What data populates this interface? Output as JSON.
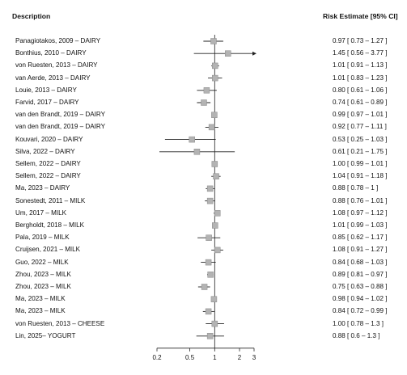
{
  "header": {
    "description_label": "Description",
    "risk_label": "Risk Estimate  [95% CI]"
  },
  "chart_data": {
    "type": "forest",
    "x_scale": "log",
    "x_ticks": [
      {
        "value": 0.2,
        "label": "0.2"
      },
      {
        "value": 0.5,
        "label": "0.5"
      },
      {
        "value": 1,
        "label": "1"
      },
      {
        "value": 2,
        "label": "2"
      },
      {
        "value": 3,
        "label": "3"
      }
    ],
    "reference_line": 1,
    "rows": [
      {
        "label": "Panagiotakos, 2009 – DAIRY",
        "estimate": 0.97,
        "lower": 0.73,
        "upper": 1.27,
        "text": "0.97  [ 0.73 – 1.27 ]"
      },
      {
        "label": "Bonthius, 2010 – DAIRY",
        "estimate": 1.45,
        "lower": 0.56,
        "upper": 3.77,
        "text": "1.45  [ 0.56 – 3.77 ]"
      },
      {
        "label": "von Ruesten, 2013 – DAIRY",
        "estimate": 1.01,
        "lower": 0.91,
        "upper": 1.13,
        "text": "1.01  [ 0.91 – 1.13 ]"
      },
      {
        "label": "van Aerde, 2013 – DAIRY",
        "estimate": 1.01,
        "lower": 0.83,
        "upper": 1.23,
        "text": "1.01  [ 0.83 – 1.23 ]"
      },
      {
        "label": "Louie, 2013 – DAIRY",
        "estimate": 0.8,
        "lower": 0.61,
        "upper": 1.06,
        "text": "0.80  [ 0.61 – 1.06 ]"
      },
      {
        "label": "Farvid, 2017 – DAIRY",
        "estimate": 0.74,
        "lower": 0.61,
        "upper": 0.89,
        "text": "0.74  [ 0.61 – 0.89 ]"
      },
      {
        "label": "van den Brandt, 2019 – DAIRY",
        "estimate": 0.99,
        "lower": 0.97,
        "upper": 1.01,
        "text": "0.99  [ 0.97 – 1.01 ]"
      },
      {
        "label": "van den Brandt, 2019 – DAIRY",
        "estimate": 0.92,
        "lower": 0.77,
        "upper": 1.11,
        "text": "0.92  [ 0.77 – 1.11 ]"
      },
      {
        "label": "Kouvari, 2020 – DAIRY",
        "estimate": 0.53,
        "lower": 0.25,
        "upper": 1.03,
        "text": "0.53  [ 0.25 – 1.03 ]"
      },
      {
        "label": "Silva, 2022 – DAIRY",
        "estimate": 0.61,
        "lower": 0.21,
        "upper": 1.75,
        "text": "0.61  [ 0.21 – 1.75 ]"
      },
      {
        "label": "Sellem, 2022 – DAIRY",
        "estimate": 1.0,
        "lower": 0.99,
        "upper": 1.01,
        "text": "1.00  [ 0.99 – 1.01 ]"
      },
      {
        "label": "Sellem, 2022 – DAIRY",
        "estimate": 1.04,
        "lower": 0.91,
        "upper": 1.18,
        "text": "1.04  [ 0.91 – 1.18 ]"
      },
      {
        "label": "Ma, 2023 – DAIRY",
        "estimate": 0.88,
        "lower": 0.78,
        "upper": 1.0,
        "text": "0.88  [ 0.78 – 1 ]"
      },
      {
        "label": "Sonestedt, 2011 – MILK",
        "estimate": 0.88,
        "lower": 0.76,
        "upper": 1.01,
        "text": "0.88  [ 0.76 – 1.01 ]"
      },
      {
        "label": "Um, 2017 – MILK",
        "estimate": 1.08,
        "lower": 0.97,
        "upper": 1.12,
        "text": "1.08  [ 0.97 – 1.12 ]"
      },
      {
        "label": "Bergholdt, 2018 – MILK",
        "estimate": 1.01,
        "lower": 0.99,
        "upper": 1.03,
        "text": "1.01  [ 0.99 – 1.03 ]"
      },
      {
        "label": "Pala, 2019 – MILK",
        "estimate": 0.85,
        "lower": 0.62,
        "upper": 1.17,
        "text": "0.85  [ 0.62 – 1.17 ]"
      },
      {
        "label": "Cruijsen, 2021 – MILK",
        "estimate": 1.08,
        "lower": 0.91,
        "upper": 1.27,
        "text": "1.08  [ 0.91 – 1.27 ]"
      },
      {
        "label": "Guo, 2022 – MILK",
        "estimate": 0.84,
        "lower": 0.68,
        "upper": 1.03,
        "text": "0.84  [ 0.68 – 1.03 ]"
      },
      {
        "label": "Zhou, 2023 – MILK",
        "estimate": 0.89,
        "lower": 0.81,
        "upper": 0.97,
        "text": "0.89  [ 0.81 – 0.97 ]"
      },
      {
        "label": "Zhou, 2023 – MILK",
        "estimate": 0.75,
        "lower": 0.63,
        "upper": 0.88,
        "text": "0.75  [ 0.63 – 0.88 ]"
      },
      {
        "label": "Ma, 2023 – MILK",
        "estimate": 0.98,
        "lower": 0.94,
        "upper": 1.02,
        "text": "0.98  [ 0.94 – 1.02 ]"
      },
      {
        "label": "Ma, 2023 – MILK",
        "estimate": 0.84,
        "lower": 0.72,
        "upper": 0.99,
        "text": "0.84  [ 0.72 – 0.99 ]"
      },
      {
        "label": "von Ruesten, 2013 – CHEESE",
        "estimate": 1.0,
        "lower": 0.78,
        "upper": 1.3,
        "text": "1.00  [ 0.78 – 1.3 ]"
      },
      {
        "label": "Lin, 2025– YOGURT",
        "estimate": 0.88,
        "lower": 0.6,
        "upper": 1.3,
        "text": "0.88  [ 0.6 – 1.3 ]"
      }
    ],
    "colors": {
      "marker_fill": "#b3b3b3",
      "marker_stroke": "#8a8a8a",
      "line": "#222222"
    }
  }
}
